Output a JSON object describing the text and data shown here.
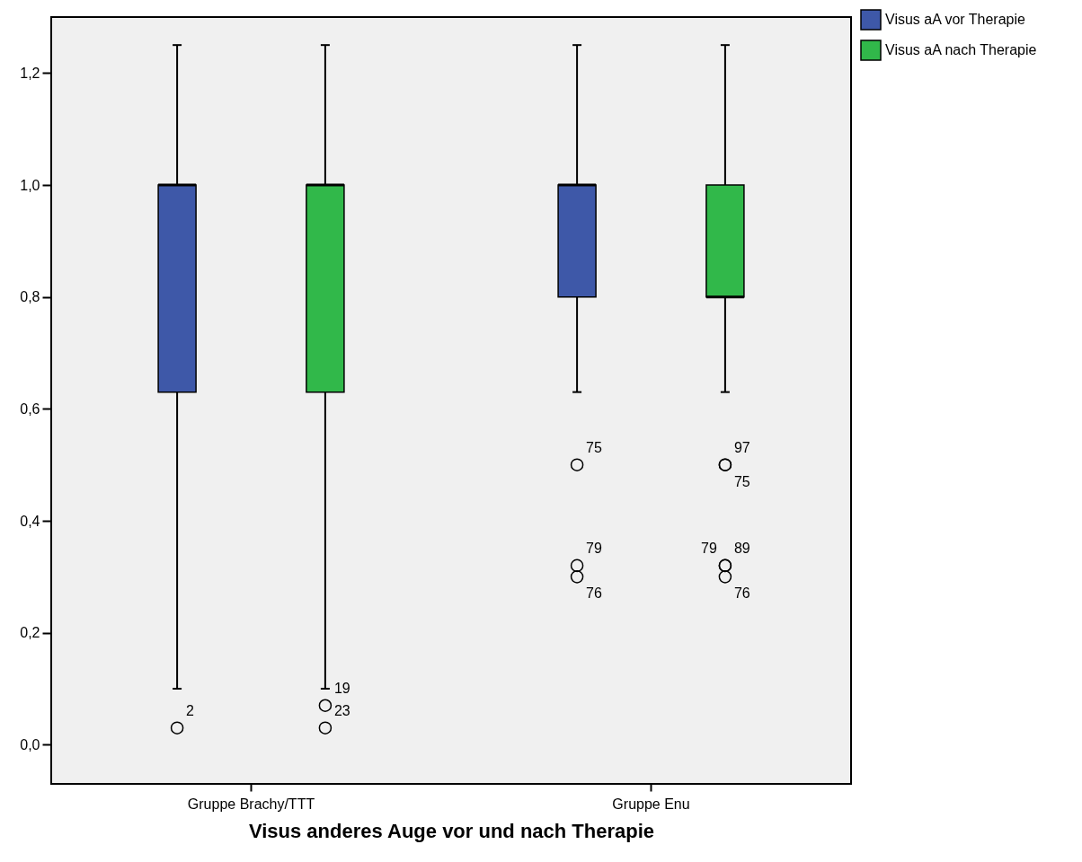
{
  "chart_data": {
    "type": "box",
    "xlabel": "Visus anderes Auge vor und nach Therapie",
    "categories": [
      "Gruppe Brachy/TTT",
      "Gruppe Enu"
    ],
    "series": [
      {
        "name": "Visus aA vor Therapie",
        "color": "#3e58a8",
        "boxes": [
          {
            "low": 0.1,
            "q1": 0.63,
            "median": 1.0,
            "q3": 1.0,
            "high": 1.25,
            "outliers": [
              0.03
            ]
          },
          {
            "low": 0.63,
            "q1": 0.8,
            "median": 1.0,
            "q3": 1.0,
            "high": 1.25,
            "outliers": [
              0.5,
              0.32,
              0.3
            ]
          }
        ]
      },
      {
        "name": "Visus aA nach Therapie",
        "color": "#31b84a",
        "boxes": [
          {
            "low": 0.1,
            "q1": 0.63,
            "median": 1.0,
            "q3": 1.0,
            "high": 1.25,
            "outliers": [
              0.07,
              0.03
            ]
          },
          {
            "low": 0.63,
            "q1": 0.8,
            "median": 0.8,
            "q3": 1.0,
            "high": 1.25,
            "outliers": [
              0.5,
              0.5,
              0.32,
              0.3,
              0.32
            ]
          }
        ]
      }
    ],
    "ylim": [
      -0.07,
      1.3
    ],
    "yticks": [
      {
        "value": 0,
        "label": "0,0"
      },
      {
        "value": 0.2,
        "label": "0,2"
      },
      {
        "value": 0.4,
        "label": "0,4"
      },
      {
        "value": 0.6,
        "label": "0,6"
      },
      {
        "value": 0.8,
        "label": "0,8"
      },
      {
        "value": 1.0,
        "label": "1,0"
      },
      {
        "value": 1.2,
        "label": "1,2"
      }
    ],
    "marker": "circle",
    "legend": "top right",
    "annotations": [
      "2",
      "75",
      "79",
      "76",
      "19",
      "23",
      "97",
      "75",
      "89",
      "76",
      "79"
    ]
  }
}
